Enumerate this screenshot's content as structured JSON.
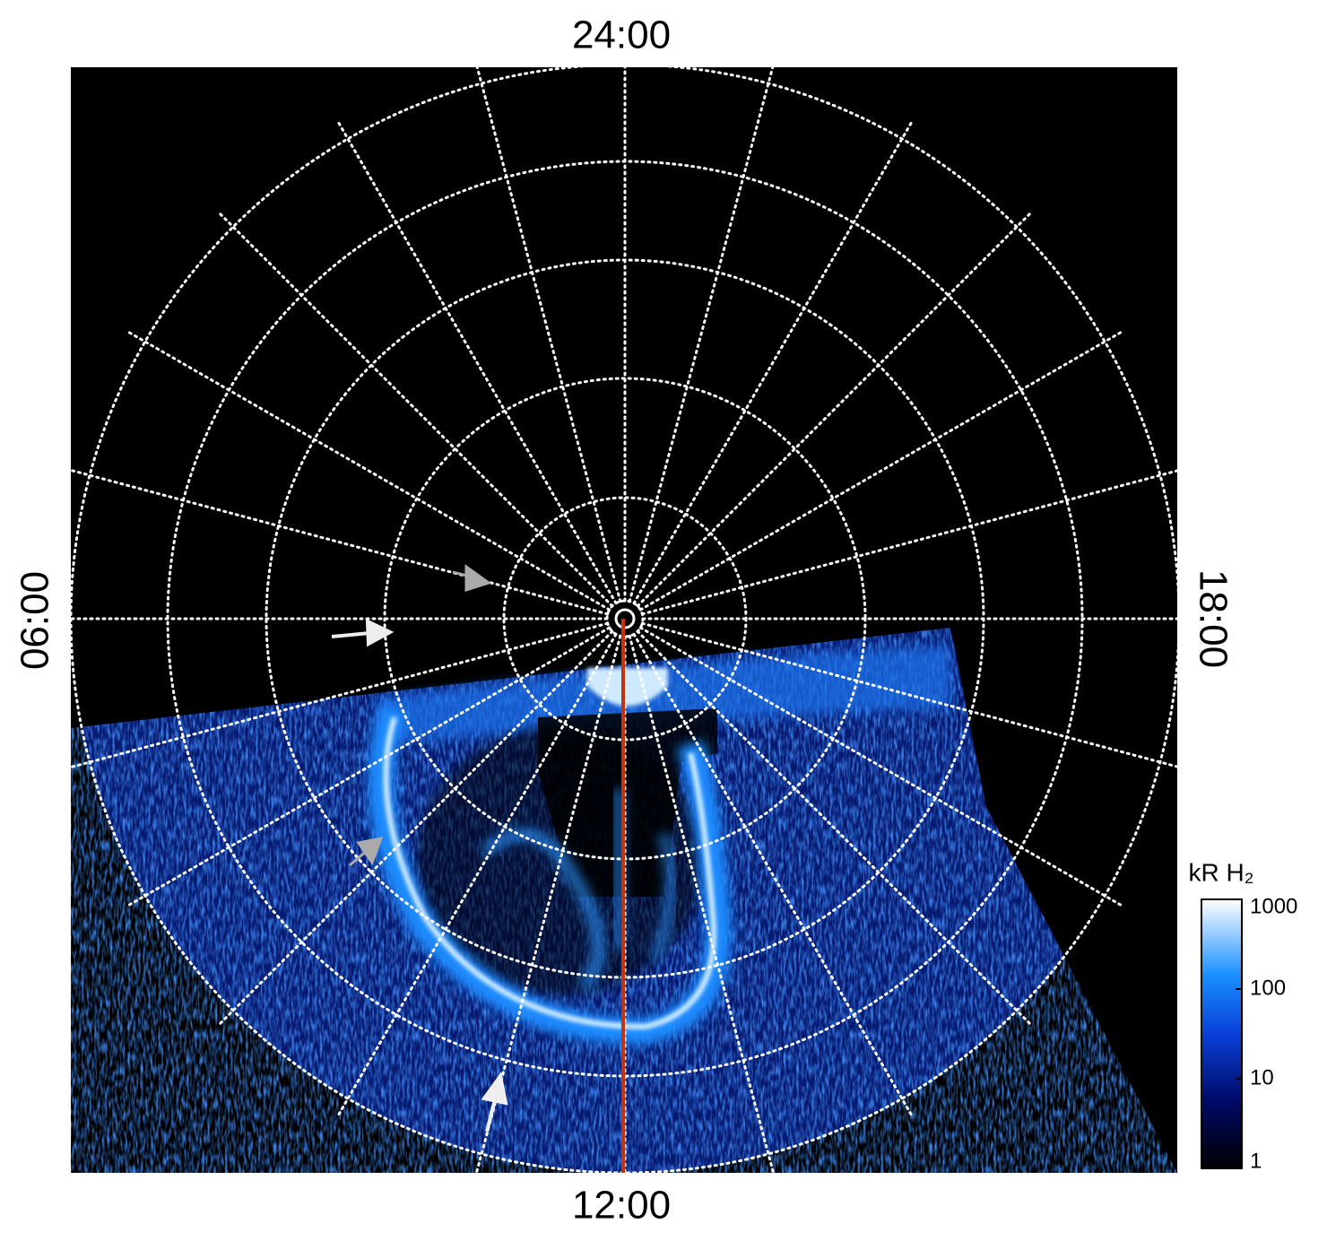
{
  "labels": {
    "top": "24:00",
    "bottom": "12:00",
    "left": "06:00",
    "right": "18:00"
  },
  "colorbar": {
    "title": "kR H₂",
    "ticks": [
      1000,
      100,
      10,
      1
    ],
    "range": [
      1,
      1000
    ],
    "scale": "log"
  }
}
